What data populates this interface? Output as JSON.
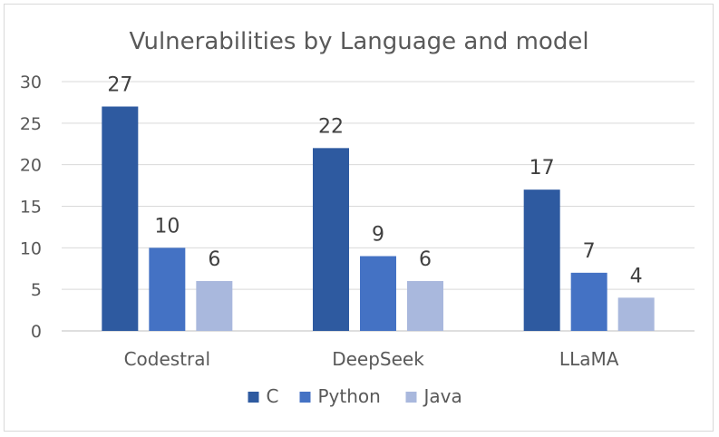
{
  "chart_data": {
    "type": "bar",
    "title": "Vulnerabilities by Language and model",
    "categories": [
      "Codestral",
      "DeepSeek",
      "LLaMA"
    ],
    "series": [
      {
        "name": "C",
        "values": [
          27,
          22,
          17
        ],
        "color": "#2e5aa0"
      },
      {
        "name": "Python",
        "values": [
          10,
          9,
          7
        ],
        "color": "#4472c4"
      },
      {
        "name": "Java",
        "values": [
          6,
          6,
          4
        ],
        "color": "#a9b8dd"
      }
    ],
    "xlabel": "",
    "ylabel": "",
    "ylim": [
      0,
      30
    ],
    "yticks": [
      0,
      5,
      10,
      15,
      20,
      25,
      30
    ],
    "grid": true,
    "legend": "bottom",
    "data_labels": true
  }
}
